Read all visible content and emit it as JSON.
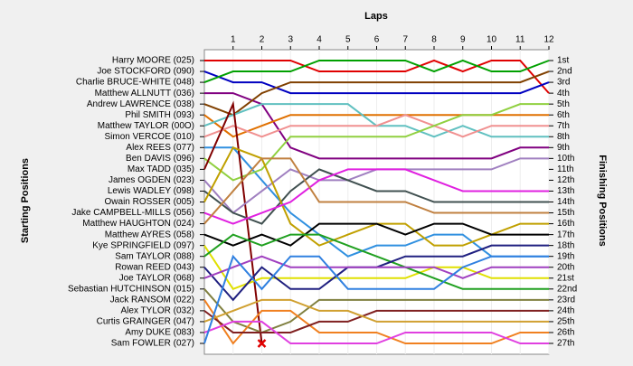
{
  "chart_data": {
    "type": "lapchart",
    "title": "Laps",
    "y_label": "Starting Positions",
    "y2_label": "Finishing Positions",
    "x": [
      0,
      1,
      2,
      3,
      4,
      5,
      6,
      7,
      8,
      9,
      10,
      11,
      12
    ],
    "xlim": [
      0,
      12
    ],
    "xticks": [
      1,
      2,
      3,
      4,
      5,
      6,
      7,
      8,
      9,
      10,
      11,
      12
    ],
    "ylim": [
      1,
      27
    ],
    "y2_labels": [
      "1st",
      "2nd",
      "3rd",
      "4th",
      "5th",
      "6th",
      "7th",
      "8th",
      "9th",
      "10th",
      "11th",
      "12th",
      "13th",
      "14th",
      "15th",
      "16th",
      "17th",
      "18th",
      "19th",
      "20th",
      "21st",
      "22nd",
      "23rd",
      "24th",
      "25th",
      "26th",
      "27th"
    ],
    "grid": true,
    "series": [
      {
        "name": "Harry MOORE (025)",
        "color": "#e00000",
        "values": [
          1,
          1,
          1,
          1,
          2,
          2,
          2,
          2,
          1,
          2,
          1,
          1,
          4
        ]
      },
      {
        "name": "Joe STOCKFORD (090)",
        "color": "#0000c0",
        "values": [
          2,
          3,
          3,
          4,
          4,
          4,
          4,
          4,
          4,
          4,
          4,
          4,
          3
        ]
      },
      {
        "name": "Charlie BRUCE-WHITE (048)",
        "color": "#00a000",
        "values": [
          3,
          2,
          2,
          2,
          1,
          1,
          1,
          1,
          2,
          1,
          2,
          2,
          1
        ]
      },
      {
        "name": "Matthew ALLNUTT (036)",
        "color": "#800080",
        "values": [
          4,
          4,
          5,
          9,
          10,
          10,
          10,
          10,
          10,
          10,
          10,
          9,
          9
        ]
      },
      {
        "name": "Andrew LAWRENCE (038)",
        "color": "#804000",
        "values": [
          5,
          6,
          4,
          3,
          3,
          3,
          3,
          3,
          3,
          3,
          3,
          3,
          2
        ]
      },
      {
        "name": "Phil SMITH (093)",
        "color": "#e07000",
        "values": [
          6,
          8,
          7,
          6,
          6,
          6,
          6,
          6,
          6,
          6,
          6,
          6,
          6
        ]
      },
      {
        "name": "Matthew TAYLOR (00O)",
        "color": "#60c0c0",
        "values": [
          7,
          6,
          5,
          5,
          5,
          5,
          7,
          7,
          8,
          7,
          8,
          8,
          8
        ]
      },
      {
        "name": "Simon VERCOE (010)",
        "color": "#f09090",
        "values": [
          8,
          7,
          8,
          7,
          7,
          7,
          7,
          6,
          7,
          8,
          7,
          7,
          7
        ]
      },
      {
        "name": "Alex REES (077)",
        "color": "#3090e0",
        "values": [
          9,
          9,
          12,
          15,
          17,
          19,
          18,
          18,
          17,
          17,
          19,
          19,
          19
        ]
      },
      {
        "name": "Ben DAVIS (096)",
        "color": "#90d040",
        "values": [
          10,
          12,
          11,
          8,
          8,
          8,
          8,
          8,
          7,
          6,
          6,
          5,
          5
        ]
      },
      {
        "name": "Max TADD (035)",
        "color": "#800000",
        "marker_end": "x",
        "values": [
          11,
          5,
          27,
          null,
          null,
          null,
          null,
          null,
          null,
          null,
          null,
          null,
          null
        ]
      },
      {
        "name": "James OGDEN (023)",
        "color": "#a080c0",
        "values": [
          12,
          15,
          13,
          11,
          12,
          12,
          11,
          11,
          11,
          11,
          11,
          10,
          10
        ]
      },
      {
        "name": "Lewis WADLEY (098)",
        "color": "#405050",
        "values": [
          13,
          15,
          16,
          13,
          11,
          12,
          13,
          13,
          14,
          14,
          14,
          14,
          14
        ]
      },
      {
        "name": "Owain ROSSER (005)",
        "color": "#c0a000",
        "values": [
          14,
          9,
          10,
          16,
          18,
          17,
          16,
          16,
          18,
          18,
          17,
          16,
          16
        ]
      },
      {
        "name": "Jake CAMPBELL-MILLS (056)",
        "color": "#e020e0",
        "values": [
          15,
          16,
          15,
          14,
          12,
          11,
          11,
          11,
          12,
          13,
          13,
          13,
          13
        ]
      },
      {
        "name": "Matthew HAUGHTON (024)",
        "color": "#c08040",
        "values": [
          16,
          13,
          10,
          10,
          14,
          14,
          14,
          14,
          15,
          15,
          15,
          15,
          15
        ]
      },
      {
        "name": "Matthew AYRES (058)",
        "color": "#000000",
        "values": [
          17,
          18,
          17,
          18,
          16,
          16,
          16,
          17,
          16,
          16,
          17,
          17,
          17
        ]
      },
      {
        "name": "Kye SPRINGFIELD (097)",
        "color": "#e0e000",
        "values": [
          18,
          22,
          21,
          21,
          21,
          21,
          21,
          21,
          20,
          20,
          21,
          21,
          21
        ]
      },
      {
        "name": "Sam TAYLOR (088)",
        "color": "#20a020",
        "values": [
          19,
          17,
          18,
          17,
          17,
          18,
          19,
          20,
          21,
          22,
          22,
          22,
          22
        ]
      },
      {
        "name": "Rowan REED (043)",
        "color": "#202080",
        "values": [
          20,
          23,
          20,
          22,
          22,
          20,
          20,
          19,
          19,
          19,
          18,
          18,
          18
        ]
      },
      {
        "name": "Joe TAYLOR (068)",
        "color": "#a040c0",
        "values": [
          21,
          20,
          19,
          20,
          20,
          20,
          20,
          20,
          20,
          21,
          20,
          20,
          20
        ]
      },
      {
        "name": "Sebastian HUTCHINSON (015)",
        "color": "#808040",
        "values": [
          22,
          25,
          26,
          25,
          23,
          23,
          23,
          23,
          23,
          23,
          23,
          23,
          23
        ]
      },
      {
        "name": "Jack RANSOM (022)",
        "color": "#f08020",
        "values": [
          23,
          27,
          24,
          24,
          26,
          26,
          26,
          27,
          27,
          27,
          27,
          26,
          26
        ]
      },
      {
        "name": "Alex TYLOR (032)",
        "color": "#802020",
        "values": [
          24,
          26,
          26,
          26,
          25,
          25,
          24,
          24,
          24,
          24,
          24,
          24,
          24
        ]
      },
      {
        "name": "Curtis GRAINGER (047)",
        "color": "#d0a030",
        "values": [
          25,
          24,
          23,
          23,
          24,
          24,
          25,
          25,
          25,
          25,
          25,
          25,
          25
        ]
      },
      {
        "name": "Amy DUKE (083)",
        "color": "#e040e0",
        "values": [
          26,
          25,
          25,
          27,
          27,
          27,
          27,
          26,
          26,
          26,
          26,
          27,
          27
        ]
      },
      {
        "name": "Sam FOWLER (027)",
        "color": "#3080e0",
        "values": [
          27,
          19,
          22,
          19,
          19,
          22,
          22,
          22,
          22,
          20,
          19,
          19,
          19
        ]
      }
    ]
  }
}
